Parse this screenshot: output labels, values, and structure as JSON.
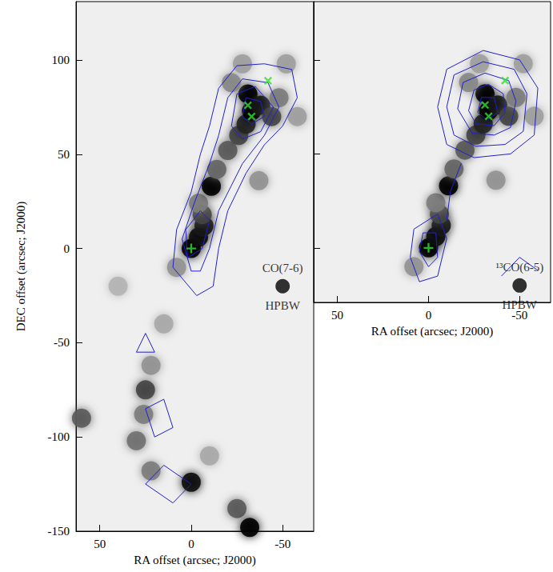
{
  "chart_data": [
    {
      "type": "contour_map",
      "xlabel": "RA offset (arcsec; J2000)",
      "ylabel": "DEC offset (arcsec; J2000)",
      "xlim": [
        63,
        -67
      ],
      "ylim": [
        -150,
        131
      ],
      "xticks": [
        50,
        0,
        -50
      ],
      "yticks": [
        -150,
        -100,
        -50,
        0,
        50,
        100
      ],
      "annotations": [
        "CO(7-6)",
        "HPBW"
      ],
      "beam": [
        -50,
        -20
      ],
      "image": [
        [
          0,
          0,
          1.0
        ],
        [
          -4,
          6,
          0.95
        ],
        [
          -7,
          12,
          0.9
        ],
        [
          -6,
          18,
          0.7
        ],
        [
          -4,
          24,
          0.45
        ],
        [
          -11,
          33,
          1.0
        ],
        [
          -14,
          42,
          0.55
        ],
        [
          -20,
          52,
          0.6
        ],
        [
          -26,
          60,
          0.7
        ],
        [
          -30,
          66,
          0.85
        ],
        [
          -33,
          73,
          1.0
        ],
        [
          -31,
          82,
          1.0
        ],
        [
          -38,
          76,
          0.9
        ],
        [
          -44,
          70,
          0.7
        ],
        [
          -48,
          80,
          0.45
        ],
        [
          -22,
          88,
          0.4
        ],
        [
          -28,
          98,
          0.3
        ],
        [
          -52,
          98,
          0.3
        ],
        [
          -58,
          70,
          0.3
        ],
        [
          8,
          -10,
          0.35
        ],
        [
          -37,
          36,
          0.35
        ],
        [
          15,
          -40,
          0.25
        ],
        [
          22,
          -62,
          0.35
        ],
        [
          25,
          -75,
          0.7
        ],
        [
          26,
          -88,
          0.45
        ],
        [
          30,
          -102,
          0.5
        ],
        [
          22,
          -118,
          0.45
        ],
        [
          0,
          -124,
          0.95
        ],
        [
          -25,
          -138,
          0.6
        ],
        [
          -32,
          -148,
          1.0
        ],
        [
          60,
          -90,
          0.6
        ],
        [
          40,
          -20,
          0.2
        ],
        [
          -10,
          -110,
          0.25
        ]
      ],
      "contours": {
        "color": "#1f1fd0",
        "lines": [
          [
            [
              -3,
              -25
            ],
            [
              10,
              -10
            ],
            [
              8,
              10
            ],
            [
              0,
              30
            ],
            [
              -5,
              50
            ],
            [
              -10,
              65
            ],
            [
              -15,
              85
            ],
            [
              -25,
              97
            ],
            [
              -40,
              98
            ],
            [
              -55,
              95
            ],
            [
              -58,
              80
            ],
            [
              -50,
              65
            ],
            [
              -40,
              55
            ],
            [
              -30,
              40
            ],
            [
              -20,
              20
            ],
            [
              -15,
              0
            ],
            [
              -12,
              -20
            ],
            [
              -3,
              -25
            ]
          ],
          [
            [
              0,
              -12
            ],
            [
              5,
              5
            ],
            [
              -2,
              25
            ],
            [
              -10,
              45
            ],
            [
              -15,
              60
            ],
            [
              -20,
              80
            ],
            [
              -28,
              90
            ],
            [
              -42,
              88
            ],
            [
              -48,
              75
            ],
            [
              -40,
              60
            ],
            [
              -28,
              45
            ],
            [
              -15,
              20
            ],
            [
              -10,
              0
            ],
            [
              -5,
              -12
            ],
            [
              0,
              -12
            ]
          ],
          [
            [
              -22,
              65
            ],
            [
              -25,
              82
            ],
            [
              -35,
              86
            ],
            [
              -45,
              75
            ],
            [
              -38,
              62
            ],
            [
              -28,
              58
            ],
            [
              -22,
              65
            ]
          ],
          [
            [
              -28,
              70
            ],
            [
              -30,
              80
            ],
            [
              -38,
              78
            ],
            [
              -40,
              70
            ],
            [
              -33,
              66
            ],
            [
              -28,
              70
            ]
          ],
          [
            [
              2,
              -5
            ],
            [
              3,
              10
            ],
            [
              -5,
              20
            ],
            [
              -10,
              15
            ],
            [
              -6,
              0
            ],
            [
              2,
              -5
            ]
          ],
          [
            [
              30,
              -55
            ],
            [
              25,
              -45
            ],
            [
              20,
              -55
            ],
            [
              30,
              -55
            ]
          ],
          [
            [
              20,
              -100
            ],
            [
              25,
              -85
            ],
            [
              15,
              -80
            ],
            [
              10,
              -95
            ],
            [
              20,
              -100
            ]
          ],
          [
            [
              25,
              -125
            ],
            [
              15,
              -115
            ],
            [
              0,
              -125
            ],
            [
              10,
              -135
            ],
            [
              25,
              -125
            ]
          ]
        ]
      },
      "markers": [
        {
          "marker": "plus",
          "color": "#33dd33",
          "points": [
            [
              0,
              0
            ]
          ]
        },
        {
          "marker": "x",
          "color": "#33dd33",
          "points": [
            [
              -31,
              76
            ],
            [
              -33,
              70
            ],
            [
              -42,
              89
            ]
          ]
        }
      ]
    },
    {
      "type": "contour_map",
      "xlabel": "RA offset (arcsec; J2000)",
      "xlim": [
        63,
        -67
      ],
      "ylim": [
        -29,
        131
      ],
      "xticks": [
        50,
        0,
        -50
      ],
      "yticks": [
        0,
        50,
        100
      ],
      "tick_labels": "x",
      "annotations": [
        "¹³CO(6-5)",
        "HPBW"
      ],
      "beam": [
        -50,
        -20
      ],
      "image": [
        [
          0,
          0,
          1.0
        ],
        [
          -4,
          6,
          0.95
        ],
        [
          -7,
          12,
          0.9
        ],
        [
          -6,
          18,
          0.7
        ],
        [
          -4,
          24,
          0.45
        ],
        [
          -11,
          33,
          1.0
        ],
        [
          -14,
          42,
          0.55
        ],
        [
          -20,
          52,
          0.6
        ],
        [
          -26,
          60,
          0.7
        ],
        [
          -30,
          66,
          0.85
        ],
        [
          -33,
          73,
          1.0
        ],
        [
          -31,
          82,
          1.0
        ],
        [
          -38,
          76,
          0.9
        ],
        [
          -44,
          70,
          0.7
        ],
        [
          -48,
          80,
          0.45
        ],
        [
          -22,
          88,
          0.4
        ],
        [
          -28,
          98,
          0.3
        ],
        [
          -52,
          98,
          0.3
        ],
        [
          -58,
          70,
          0.3
        ],
        [
          8,
          -10,
          0.35
        ],
        [
          -37,
          36,
          0.35
        ]
      ],
      "contours": {
        "color": "#1f1fd0",
        "lines": [
          [
            [
              -5,
              75
            ],
            [
              -10,
              95
            ],
            [
              -30,
              105
            ],
            [
              -50,
              100
            ],
            [
              -60,
              85
            ],
            [
              -58,
              60
            ],
            [
              -45,
              50
            ],
            [
              -25,
              48
            ],
            [
              -10,
              55
            ],
            [
              -5,
              75
            ]
          ],
          [
            [
              -10,
              75
            ],
            [
              -14,
              92
            ],
            [
              -30,
              99
            ],
            [
              -47,
              95
            ],
            [
              -54,
              82
            ],
            [
              -52,
              62
            ],
            [
              -42,
              55
            ],
            [
              -26,
              54
            ],
            [
              -14,
              60
            ],
            [
              -10,
              75
            ]
          ],
          [
            [
              -16,
              74
            ],
            [
              -19,
              88
            ],
            [
              -31,
              93
            ],
            [
              -44,
              89
            ],
            [
              -48,
              78
            ],
            [
              -45,
              64
            ],
            [
              -36,
              60
            ],
            [
              -24,
              61
            ],
            [
              -16,
              74
            ]
          ],
          [
            [
              -22,
              73
            ],
            [
              -25,
              84
            ],
            [
              -33,
              87
            ],
            [
              -41,
              82
            ],
            [
              -42,
              72
            ],
            [
              -36,
              65
            ],
            [
              -26,
              66
            ],
            [
              -22,
              73
            ]
          ],
          [
            [
              -27,
              72
            ],
            [
              -29,
              80
            ],
            [
              -36,
              80
            ],
            [
              -38,
              72
            ],
            [
              -32,
              68
            ],
            [
              -27,
              72
            ]
          ],
          [
            [
              -10,
              15
            ],
            [
              -12,
              30
            ],
            [
              -18,
              45
            ]
          ],
          [
            [
              10,
              -5
            ],
            [
              8,
              10
            ],
            [
              -5,
              18
            ],
            [
              -10,
              5
            ],
            [
              -5,
              -15
            ],
            [
              5,
              -18
            ],
            [
              10,
              -5
            ]
          ],
          [
            [
              5,
              -2
            ],
            [
              3,
              8
            ],
            [
              -4,
              8
            ],
            [
              -5,
              -5
            ],
            [
              0,
              -10
            ],
            [
              5,
              -2
            ]
          ],
          [
            [
              -40,
              -15
            ],
            [
              -50,
              -5
            ],
            [
              -60,
              -12
            ]
          ]
        ]
      },
      "markers": [
        {
          "marker": "plus",
          "color": "#33dd33",
          "points": [
            [
              0,
              0
            ]
          ]
        },
        {
          "marker": "x",
          "color": "#33dd33",
          "points": [
            [
              -31,
              76
            ],
            [
              -33,
              70
            ],
            [
              -42,
              89
            ]
          ]
        }
      ]
    }
  ]
}
